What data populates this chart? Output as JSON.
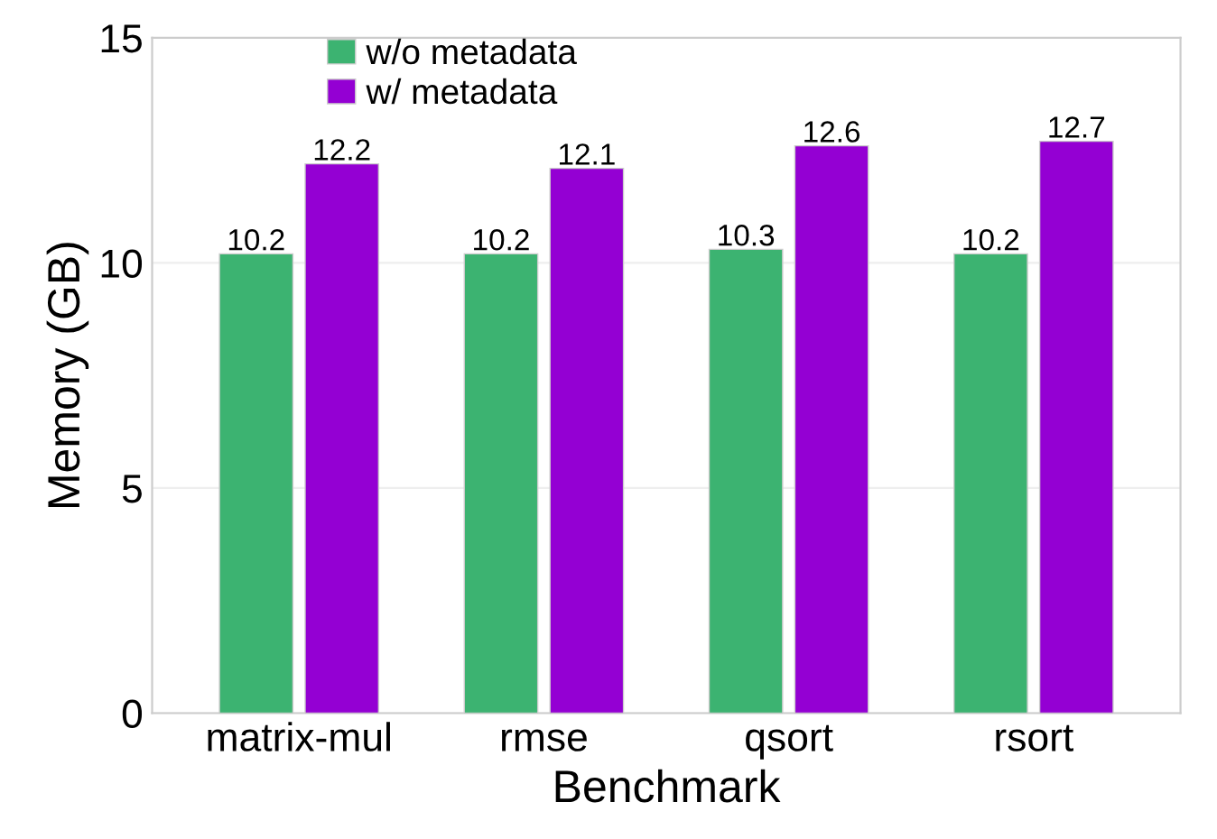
{
  "chart_data": {
    "type": "bar",
    "xlabel": "Benchmark",
    "ylabel": "Memory (GB)",
    "categories": [
      "matrix-mul",
      "rmse",
      "qsort",
      "rsort"
    ],
    "series": [
      {
        "name": "w/o metadata",
        "color": "#3cb371",
        "values": [
          10.2,
          10.2,
          10.3,
          10.2
        ]
      },
      {
        "name": "w/ metadata",
        "color": "#9400d3",
        "values": [
          12.2,
          12.1,
          12.6,
          12.7
        ]
      }
    ],
    "ylim": [
      0,
      15
    ],
    "yticks": [
      0,
      5,
      10,
      15
    ],
    "grid": "y",
    "legend": "top left",
    "data_labels": true
  }
}
